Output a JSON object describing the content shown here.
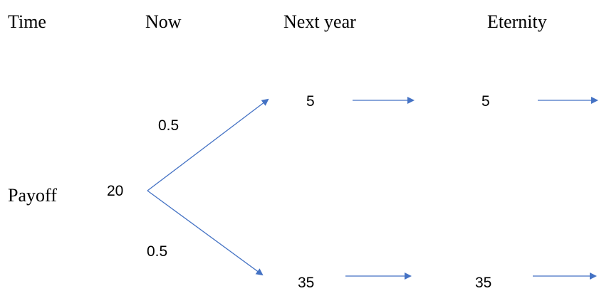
{
  "header": {
    "time_label": "Time",
    "now_label": "Now",
    "next_year_label": "Next year",
    "eternity_label": "Eternity"
  },
  "row": {
    "payoff_label": "Payoff"
  },
  "tree": {
    "root_value": "20",
    "up_probability": "0.5",
    "down_probability": "0.5",
    "up_next_year": "5",
    "up_eternity": "5",
    "down_next_year": "35",
    "down_eternity": "35"
  },
  "colors": {
    "arrow": "#4472C4",
    "text": "#000000",
    "background": "#FFFFFF"
  }
}
